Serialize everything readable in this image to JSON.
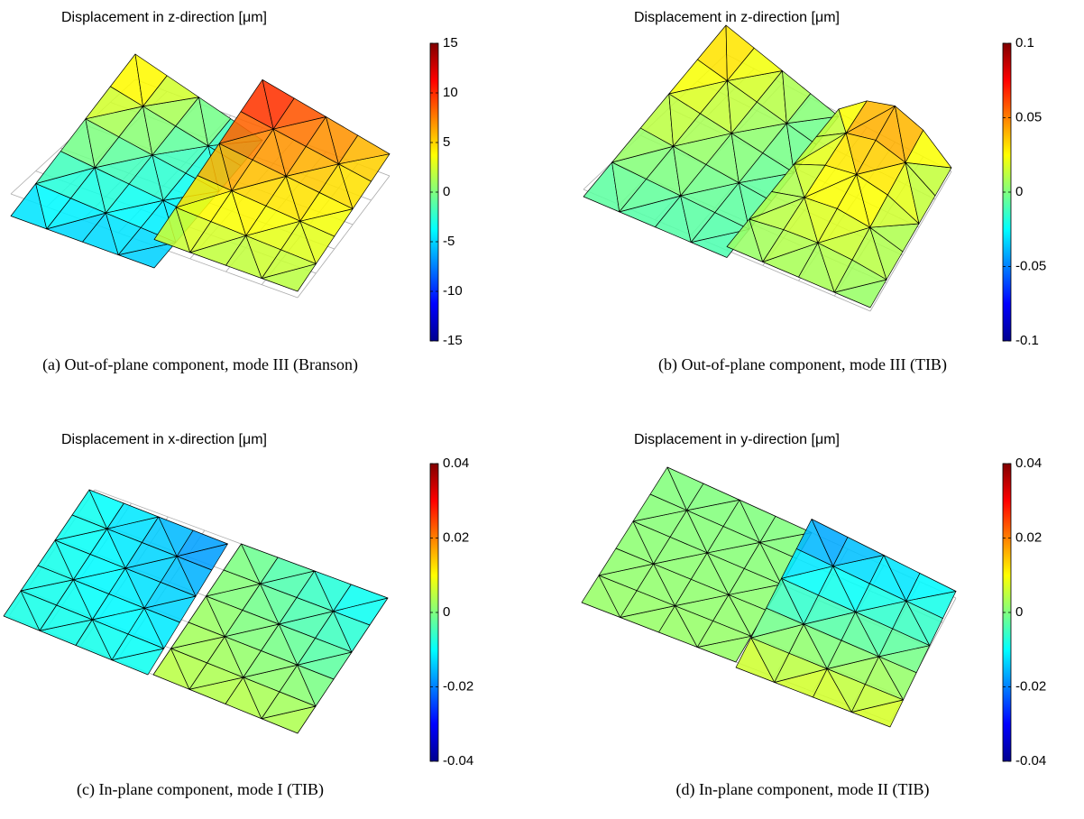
{
  "panels": [
    {
      "title": "Displacement in z-direction [μm]",
      "caption": "(a) Out-of-plane component, mode III (Branson)",
      "colorbar": {
        "limits": [
          -15,
          15
        ],
        "ticks": [
          -15,
          -10,
          -5,
          0,
          5,
          10,
          15
        ]
      }
    },
    {
      "title": "Displacement in z-direction [μm]",
      "caption": "(b) Out-of-plane component, mode III (TIB)",
      "colorbar": {
        "limits": [
          -0.1,
          0.1
        ],
        "ticks": [
          -0.1,
          -0.05,
          0,
          0.05,
          0.1
        ]
      }
    },
    {
      "title": "Displacement in x-direction [μm]",
      "caption": "(c) In-plane component, mode I (TIB)",
      "colorbar": {
        "limits": [
          -0.04,
          0.04
        ],
        "ticks": [
          -0.04,
          -0.02,
          0,
          0.02,
          0.04
        ]
      }
    },
    {
      "title": "Displacement in y-direction [μm]",
      "caption": "(d) In-plane component, mode II (TIB)",
      "colorbar": {
        "limits": [
          -0.04,
          0.04
        ],
        "ticks": [
          -0.04,
          -0.02,
          0,
          0.02,
          0.04
        ]
      }
    }
  ]
}
